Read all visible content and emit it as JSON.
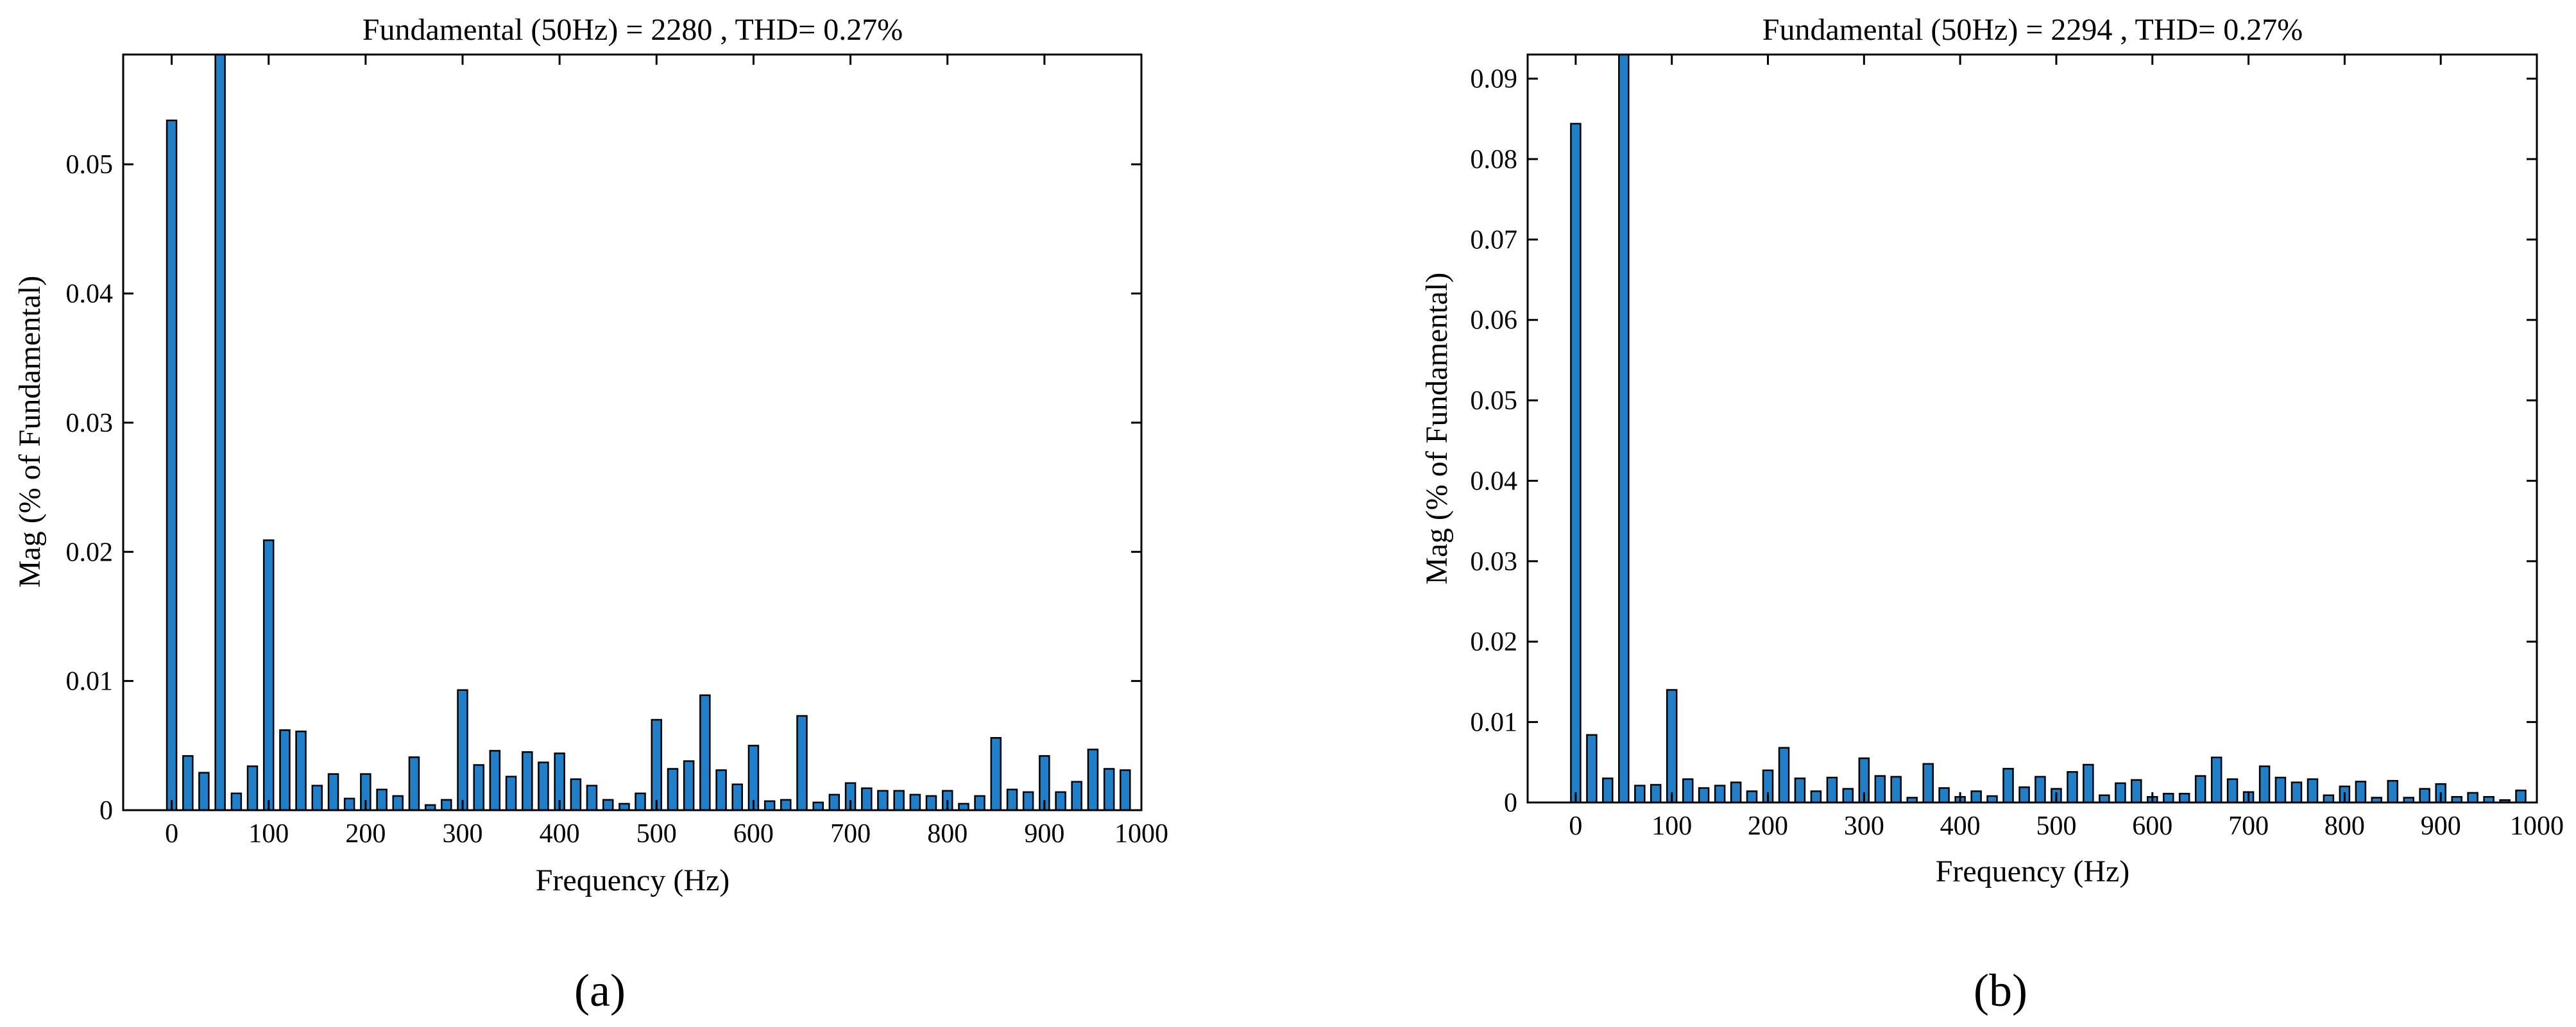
{
  "chart_data": [
    {
      "type": "bar",
      "panel_label": "a",
      "title": "Fundamental (50Hz) = 2280 , THD= 0.27%",
      "xlabel": "Frequency (Hz)",
      "ylabel": "Mag (% of Fundamental)",
      "xlim": [
        -50,
        1000
      ],
      "ylim": [
        0,
        0.0585
      ],
      "xticks": [
        0,
        100,
        200,
        300,
        400,
        500,
        600,
        700,
        800,
        900,
        1000
      ],
      "xtick_labels": [
        "0",
        "100",
        "200",
        "300",
        "400",
        "500",
        "600",
        "700",
        "800",
        "900",
        "1000"
      ],
      "yticks": [
        0,
        0.01,
        0.02,
        0.03,
        0.04,
        0.05
      ],
      "ytick_labels": [
        "0",
        "0.01",
        "0.02",
        "0.03",
        "0.04",
        "0.05"
      ],
      "grid": false,
      "legend": "none",
      "bar_color": "#1f7fc8",
      "x": [
        0,
        16.7,
        33.3,
        50,
        66.7,
        83.3,
        100,
        116.7,
        133.3,
        150,
        166.7,
        183.3,
        200,
        216.7,
        233.3,
        250,
        266.7,
        283.3,
        300,
        316.7,
        333.3,
        350,
        366.7,
        383.3,
        400,
        416.7,
        433.3,
        450,
        466.7,
        483.3,
        500,
        516.7,
        533.3,
        550,
        566.7,
        583.3,
        600,
        616.7,
        633.3,
        650,
        666.7,
        683.3,
        700,
        716.7,
        733.3,
        750,
        766.7,
        783.3,
        800,
        816.7,
        833.3,
        850,
        866.7,
        883.3,
        900,
        916.7,
        933.3,
        950,
        966.7,
        983.3
      ],
      "values": [
        0.0534,
        0.0042,
        0.0029,
        0.0585,
        0.0013,
        0.0034,
        0.0209,
        0.0062,
        0.0061,
        0.0019,
        0.0028,
        0.0009,
        0.0028,
        0.0016,
        0.0011,
        0.0041,
        0.0004,
        0.0008,
        0.0093,
        0.0035,
        0.0046,
        0.0026,
        0.0045,
        0.0037,
        0.0044,
        0.0024,
        0.0019,
        0.0008,
        0.0005,
        0.0013,
        0.007,
        0.0032,
        0.0038,
        0.0089,
        0.0031,
        0.002,
        0.005,
        0.0007,
        0.0008,
        0.0073,
        0.0006,
        0.0012,
        0.0021,
        0.0017,
        0.0015,
        0.0015,
        0.0012,
        0.0011,
        0.0015,
        0.0005,
        0.0011,
        0.0056,
        0.0016,
        0.0014,
        0.0042,
        0.0014,
        0.0022,
        0.0047,
        0.0032,
        0.0031
      ]
    },
    {
      "type": "bar",
      "panel_label": "b",
      "title": "Fundamental (50Hz) = 2294 , THD= 0.27%",
      "xlabel": "Frequency (Hz)",
      "ylabel": "Mag (% of Fundamental)",
      "xlim": [
        -50,
        1000
      ],
      "ylim": [
        0,
        0.093
      ],
      "xticks": [
        0,
        100,
        200,
        300,
        400,
        500,
        600,
        700,
        800,
        900,
        1000
      ],
      "xtick_labels": [
        "0",
        "100",
        "200",
        "300",
        "400",
        "500",
        "600",
        "700",
        "800",
        "900",
        "1000"
      ],
      "yticks": [
        0,
        0.01,
        0.02,
        0.03,
        0.04,
        0.05,
        0.06,
        0.07,
        0.08,
        0.09
      ],
      "ytick_labels": [
        "0",
        "0.01",
        "0.02",
        "0.03",
        "0.04",
        "0.05",
        "0.06",
        "0.07",
        "0.08",
        "0.09"
      ],
      "grid": false,
      "legend": "none",
      "bar_color": "#1f7fc8",
      "x": [
        0,
        16.7,
        33.3,
        50,
        66.7,
        83.3,
        100,
        116.7,
        133.3,
        150,
        166.7,
        183.3,
        200,
        216.7,
        233.3,
        250,
        266.7,
        283.3,
        300,
        316.7,
        333.3,
        350,
        366.7,
        383.3,
        400,
        416.7,
        433.3,
        450,
        466.7,
        483.3,
        500,
        516.7,
        533.3,
        550,
        566.7,
        583.3,
        600,
        616.7,
        633.3,
        650,
        666.7,
        683.3,
        700,
        716.7,
        733.3,
        750,
        766.7,
        783.3,
        800,
        816.7,
        833.3,
        850,
        866.7,
        883.3,
        900,
        916.7,
        933.3,
        950,
        966.7,
        983.3
      ],
      "values": [
        0.0844,
        0.0084,
        0.003,
        0.093,
        0.0021,
        0.0022,
        0.014,
        0.0029,
        0.0018,
        0.0021,
        0.0025,
        0.0014,
        0.004,
        0.0068,
        0.003,
        0.0014,
        0.0031,
        0.0017,
        0.0055,
        0.0033,
        0.0032,
        0.0006,
        0.0048,
        0.0018,
        0.0007,
        0.0014,
        0.0008,
        0.0042,
        0.0019,
        0.0032,
        0.0017,
        0.0038,
        0.0047,
        0.0009,
        0.0024,
        0.0028,
        0.0007,
        0.0011,
        0.0011,
        0.0033,
        0.0056,
        0.0029,
        0.0013,
        0.0045,
        0.0031,
        0.0025,
        0.0029,
        0.0009,
        0.002,
        0.0026,
        0.0006,
        0.0027,
        0.0006,
        0.0017,
        0.0023,
        0.0007,
        0.0012,
        0.0007,
        0.0003,
        0.0015
      ]
    }
  ],
  "captions": [
    "(a)",
    "(b)"
  ]
}
